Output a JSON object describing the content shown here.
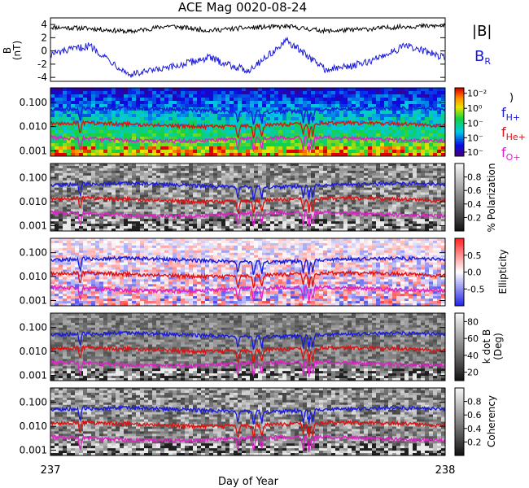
{
  "chart_data": [
    {
      "type": "line",
      "title": "ACE Mag 0020-08-24",
      "ylabel": "B (nT)",
      "ylabel_parts": [
        "B",
        "(nT)"
      ],
      "ylim": [
        -4.6,
        5
      ],
      "yticks": [
        -4,
        -2,
        0,
        2,
        4
      ],
      "x_range": [
        237,
        238
      ],
      "legend": [
        {
          "label": "|B|",
          "color": "#000000"
        },
        {
          "label": "B_R",
          "color": "#1a1adc"
        }
      ],
      "series": [
        {
          "name": "|B|",
          "color": "#000000",
          "x": [
            237.0,
            237.1,
            237.2,
            237.3,
            237.4,
            237.5,
            237.6,
            237.7,
            237.8,
            237.9,
            238.0
          ],
          "y": [
            3.6,
            3.4,
            2.9,
            3.8,
            3.1,
            3.5,
            3.7,
            3.0,
            3.3,
            3.7,
            3.8
          ]
        },
        {
          "name": "B_R",
          "color": "#1a1adc",
          "x": [
            237.0,
            237.1,
            237.2,
            237.3,
            237.4,
            237.5,
            237.6,
            237.7,
            237.8,
            237.9,
            238.0
          ],
          "y": [
            -0.5,
            0.8,
            -3.6,
            -2.6,
            -1.0,
            -3.0,
            1.5,
            -2.9,
            -1.8,
            0.8,
            -1.0
          ]
        }
      ]
    },
    {
      "type": "heatmap",
      "ylim": [
        0.0006,
        0.4
      ],
      "yscale": "log",
      "yticks": [
        0.001,
        0.01,
        0.1
      ],
      "ytick_labels": [
        "0.001",
        "0.010",
        "0.100"
      ],
      "colorbar": {
        "style": "rainbow",
        "tick_labels": [
          "10⁻²",
          "10⁰",
          "10⁻",
          "10⁻",
          "10⁻"
        ]
      },
      "legend": [
        {
          "label": "f_H+",
          "color": "#1a1adc"
        },
        {
          "label": "f_He+",
          "color": "#e01010"
        },
        {
          "label": "f_O+",
          "color": "#e020c8"
        }
      ],
      "series": [
        {
          "name": "f_H+",
          "color": "#1a1adc",
          "typical": 0.055
        },
        {
          "name": "f_He+",
          "color": "#e01010",
          "typical": 0.0135
        },
        {
          "name": "f_O+",
          "color": "#e020c8",
          "typical": 0.0034
        }
      ]
    },
    {
      "type": "heatmap",
      "ylim": [
        0.0006,
        0.4
      ],
      "yscale": "log",
      "yticks": [
        0.001,
        0.01,
        0.1
      ],
      "ytick_labels": [
        "0.001",
        "0.010",
        "0.100"
      ],
      "colorbar": {
        "style": "gray",
        "label": "% Polarization",
        "tick_labels": [
          "0.8",
          "0.6",
          "0.4",
          "0.2"
        ],
        "range": [
          0,
          1
        ]
      },
      "series": [
        {
          "name": "f_H+",
          "color": "#1a1adc",
          "typical": 0.055
        },
        {
          "name": "f_He+",
          "color": "#e01010",
          "typical": 0.0135
        },
        {
          "name": "f_O+",
          "color": "#e020c8",
          "typical": 0.0034
        }
      ]
    },
    {
      "type": "heatmap",
      "ylim": [
        0.0006,
        0.4
      ],
      "yscale": "log",
      "yticks": [
        0.001,
        0.01,
        0.1
      ],
      "ytick_labels": [
        "0.001",
        "0.010",
        "0.100"
      ],
      "colorbar": {
        "style": "bwr",
        "label": "Ellipticity",
        "tick_labels": [
          "0.5",
          "0.0",
          "-0.5"
        ],
        "range": [
          -1,
          1
        ]
      },
      "series": [
        {
          "name": "f_H+",
          "color": "#1a1adc",
          "typical": 0.055
        },
        {
          "name": "f_He+",
          "color": "#e01010",
          "typical": 0.0135
        },
        {
          "name": "f_O+",
          "color": "#e020c8",
          "typical": 0.0034
        }
      ]
    },
    {
      "type": "heatmap",
      "ylim": [
        0.0006,
        0.4
      ],
      "yscale": "log",
      "yticks": [
        0.001,
        0.01,
        0.1
      ],
      "ytick_labels": [
        "0.001",
        "0.010",
        "0.100"
      ],
      "colorbar": {
        "style": "gray",
        "label": "k dot B (Deg)",
        "label_parts": [
          "k dot B",
          "(Deg)"
        ],
        "tick_labels": [
          "80",
          "60",
          "40",
          "20"
        ],
        "range": [
          10,
          90
        ]
      },
      "series": [
        {
          "name": "f_H+",
          "color": "#1a1adc",
          "typical": 0.055
        },
        {
          "name": "f_He+",
          "color": "#e01010",
          "typical": 0.0135
        },
        {
          "name": "f_O+",
          "color": "#e020c8",
          "typical": 0.0034
        }
      ]
    },
    {
      "type": "heatmap",
      "ylim": [
        0.0006,
        0.4
      ],
      "yscale": "log",
      "yticks": [
        0.001,
        0.01,
        0.1
      ],
      "ytick_labels": [
        "0.001",
        "0.010",
        "0.100"
      ],
      "colorbar": {
        "style": "gray",
        "label": "Coherency",
        "tick_labels": [
          "0.8",
          "0.6",
          "0.4",
          "0.2"
        ],
        "range": [
          0,
          1
        ]
      },
      "xlabel": "Day of Year",
      "xtick_labels": [
        "237",
        "238"
      ],
      "series": [
        {
          "name": "f_H+",
          "color": "#1a1adc",
          "typical": 0.055
        },
        {
          "name": "f_He+",
          "color": "#e01010",
          "typical": 0.0135
        },
        {
          "name": "f_O+",
          "color": "#e020c8",
          "typical": 0.0034
        }
      ]
    }
  ]
}
